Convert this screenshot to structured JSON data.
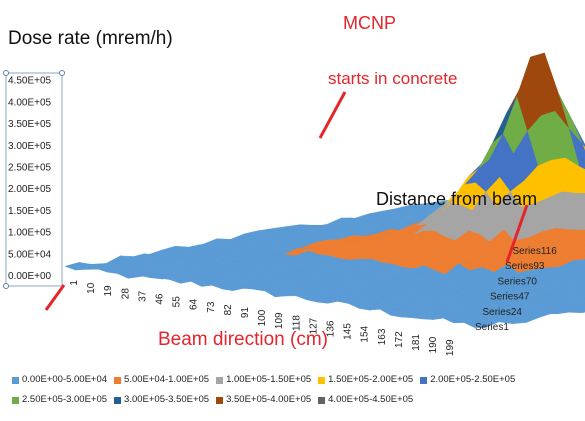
{
  "chart_data": {
    "type": "surface",
    "title": "",
    "annotations": {
      "top_label": "MCNP",
      "peak_note": "starts in concrete",
      "ylabel": "Dose rate (mrem/h)",
      "xlabel": "Beam direction (cm)",
      "depth_label": "Distance from beam"
    },
    "ylim": [
      0,
      450000
    ],
    "y_ticks": [
      "0.00E+00",
      "5.00E+04",
      "1.00E+05",
      "1.50E+05",
      "2.00E+05",
      "2.50E+05",
      "3.00E+05",
      "3.50E+05",
      "4.00E+05",
      "4.50E+05"
    ],
    "x_ticks": [
      "1",
      "10",
      "19",
      "28",
      "37",
      "46",
      "55",
      "64",
      "73",
      "82",
      "91",
      "100",
      "109",
      "118",
      "127",
      "136",
      "145",
      "154",
      "163",
      "172",
      "181",
      "190",
      "199"
    ],
    "series_ticks": [
      "Series1",
      "Series24",
      "Series47",
      "Series70",
      "Series93",
      "Series116"
    ],
    "legend": [
      {
        "label": "0.00E+00-5.00E+04",
        "color": "#5b9bd5"
      },
      {
        "label": "5.00E+04-1.00E+05",
        "color": "#ed7d31"
      },
      {
        "label": "1.00E+05-1.50E+05",
        "color": "#a5a5a5"
      },
      {
        "label": "1.50E+05-2.00E+05",
        "color": "#ffc000"
      },
      {
        "label": "2.00E+05-2.50E+05",
        "color": "#4472c4"
      },
      {
        "label": "2.50E+05-3.00E+05",
        "color": "#70ad47"
      },
      {
        "label": "3.00E+05-3.50E+05",
        "color": "#255e91"
      },
      {
        "label": "3.50E+05-4.00E+05",
        "color": "#9e480e"
      },
      {
        "label": "4.00E+05-4.50E+05",
        "color": "#636363"
      }
    ],
    "peak": {
      "x": 109,
      "series": 70,
      "value": 450000
    }
  }
}
